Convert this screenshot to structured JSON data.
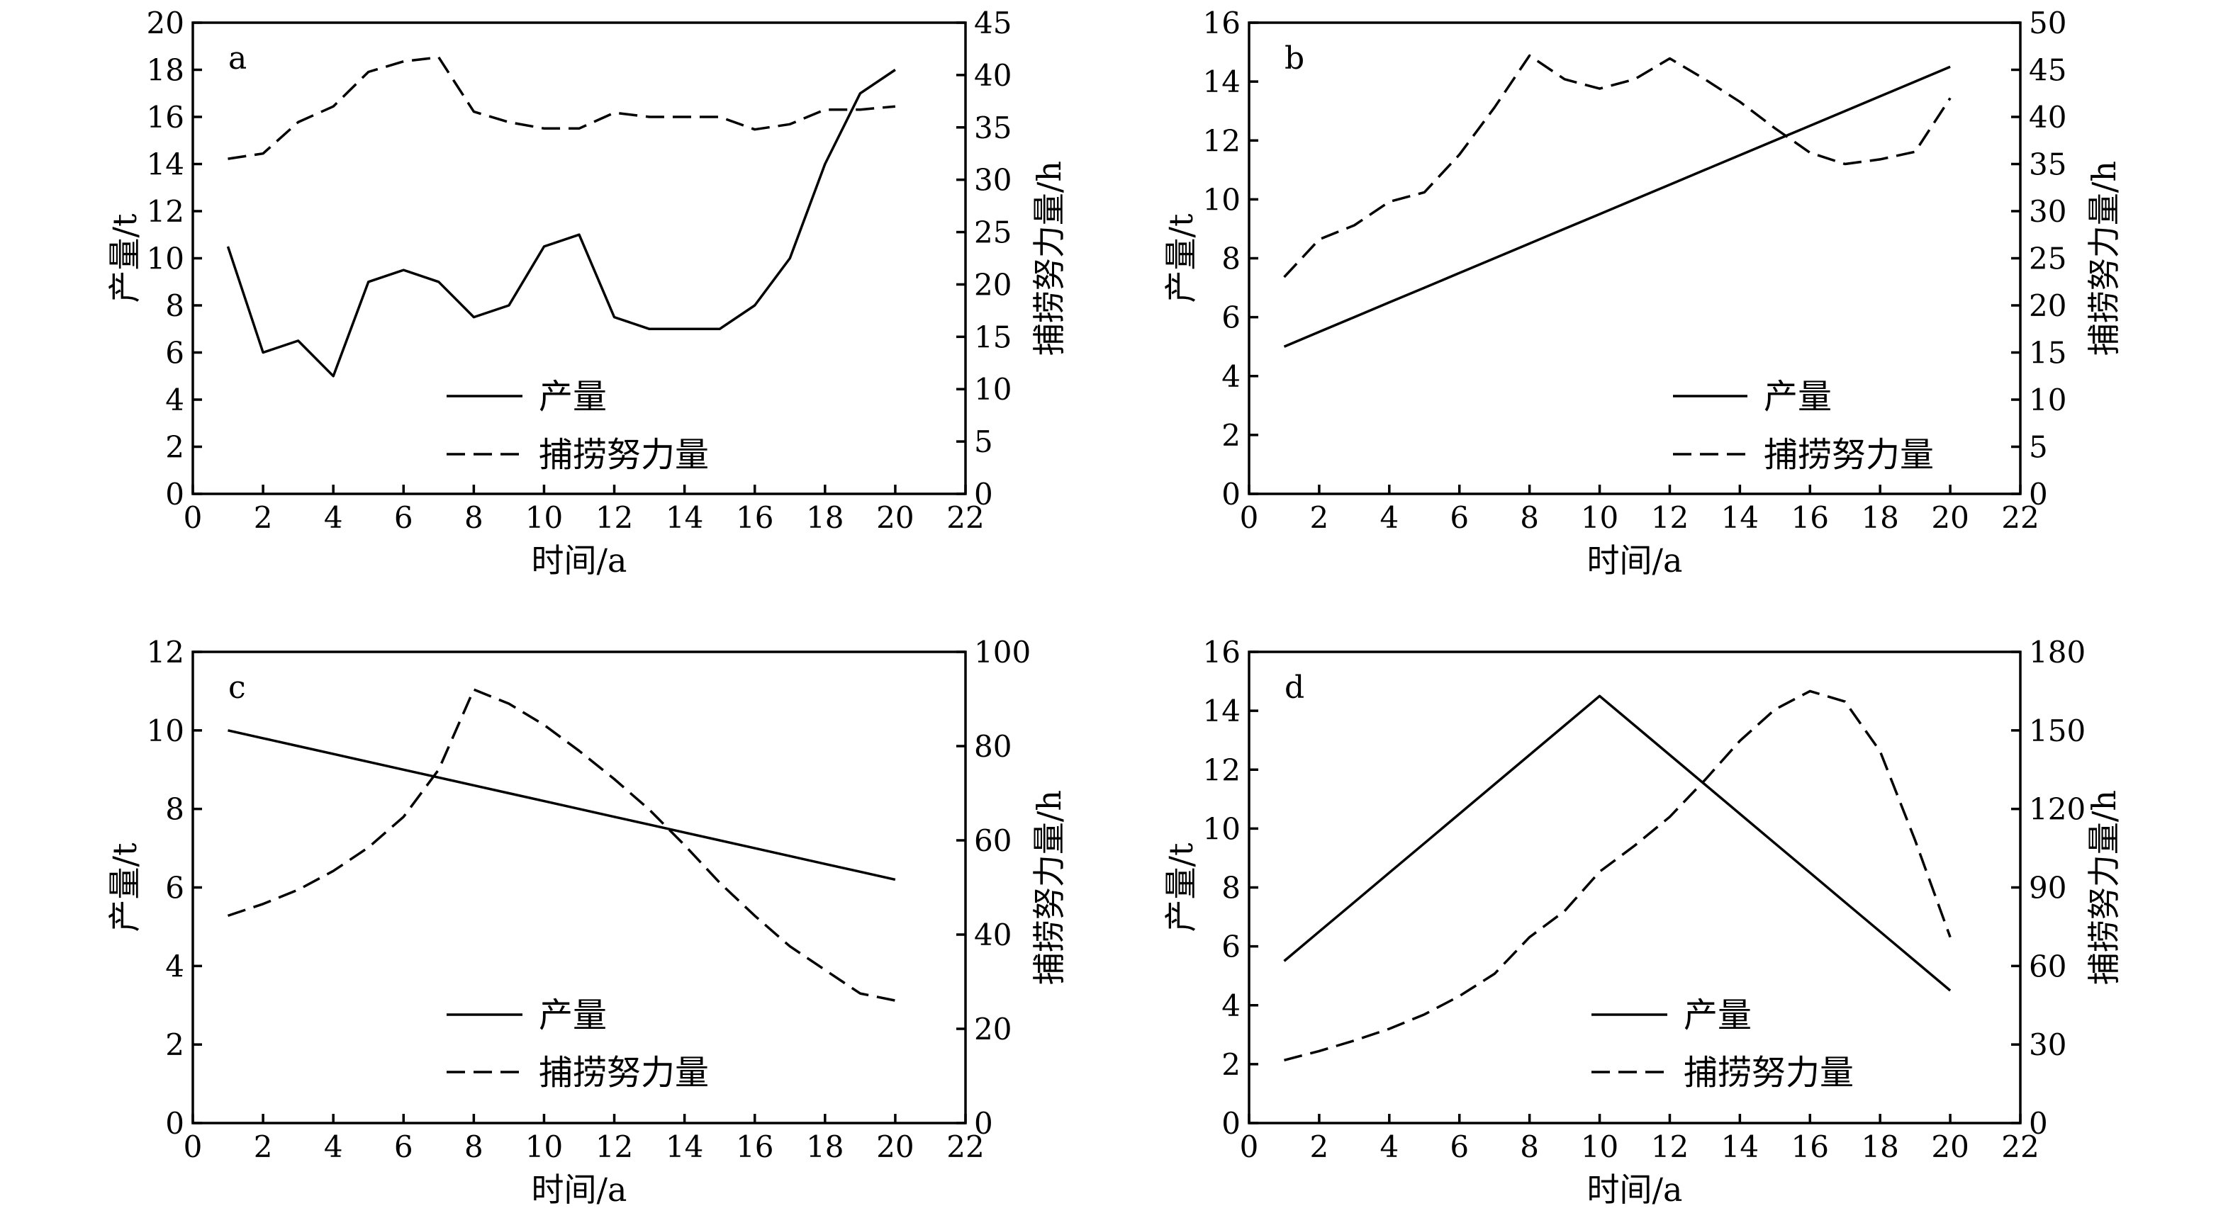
{
  "chart_data": [
    {
      "panel": "a",
      "type": "line",
      "x": [
        1,
        2,
        3,
        4,
        5,
        6,
        7,
        8,
        9,
        10,
        11,
        12,
        13,
        14,
        15,
        16,
        17,
        18,
        19,
        20
      ],
      "series": [
        {
          "name": "产量",
          "axis": "left",
          "dash": "solid",
          "values": [
            10.5,
            6,
            6.5,
            5,
            9,
            9.5,
            9,
            7.5,
            8,
            10.5,
            11,
            7.5,
            7,
            7,
            7,
            8,
            10,
            14,
            17,
            18
          ]
        },
        {
          "name": "捕捞努力量",
          "axis": "right",
          "dash": "dashed",
          "values": [
            32,
            32.5,
            35.5,
            37,
            40.3,
            41.3,
            41.7,
            36.5,
            35.5,
            34.9,
            34.9,
            36.4,
            36,
            36,
            36,
            34.8,
            35.3,
            36.7,
            36.7,
            37
          ]
        }
      ],
      "xlabel": "时间/a",
      "ylabel": "产量/t",
      "y2label": "捕捞努力量/h",
      "xlim": [
        0,
        22
      ],
      "ylim": [
        0,
        20
      ],
      "y2lim": [
        0,
        45
      ],
      "xticks": [
        0,
        2,
        4,
        6,
        8,
        10,
        12,
        14,
        16,
        18,
        20,
        22
      ],
      "yticks": [
        0,
        2,
        4,
        6,
        8,
        10,
        12,
        14,
        16,
        18,
        20
      ],
      "y2ticks": [
        0,
        5,
        10,
        15,
        20,
        25,
        30,
        35,
        40,
        45
      ],
      "legend_placement": "bottom-center",
      "grid": false
    },
    {
      "panel": "b",
      "type": "line",
      "x": [
        1,
        2,
        3,
        4,
        5,
        6,
        7,
        8,
        9,
        10,
        11,
        12,
        13,
        14,
        15,
        16,
        17,
        18,
        19,
        20
      ],
      "series": [
        {
          "name": "产量",
          "axis": "left",
          "dash": "solid",
          "values": [
            5,
            5.5,
            6,
            6.5,
            7,
            7.5,
            8,
            8.5,
            9,
            9.5,
            10,
            10.5,
            11,
            11.5,
            12,
            12.5,
            13,
            13.5,
            14,
            14.5
          ]
        },
        {
          "name": "捕捞努力量",
          "axis": "right",
          "dash": "dashed",
          "values": [
            23,
            27,
            28.5,
            31,
            32,
            36,
            41,
            46.5,
            44,
            43,
            44,
            46.2,
            44,
            41.6,
            38.8,
            36.2,
            35,
            35.5,
            36.3,
            42
          ]
        }
      ],
      "xlabel": "时间/a",
      "ylabel": "产量/t",
      "y2label": "捕捞努力量/h",
      "xlim": [
        0,
        22
      ],
      "ylim": [
        0,
        16
      ],
      "y2lim": [
        0,
        50
      ],
      "xticks": [
        0,
        2,
        4,
        6,
        8,
        10,
        12,
        14,
        16,
        18,
        20,
        22
      ],
      "yticks": [
        0,
        2,
        4,
        6,
        8,
        10,
        12,
        14,
        16
      ],
      "y2ticks": [
        0,
        5,
        10,
        15,
        20,
        25,
        30,
        35,
        40,
        45,
        50
      ],
      "legend_placement": "bottom-right",
      "grid": false
    },
    {
      "panel": "c",
      "type": "line",
      "x": [
        1,
        2,
        3,
        4,
        5,
        6,
        7,
        8,
        9,
        10,
        11,
        12,
        13,
        14,
        15,
        16,
        17,
        18,
        19,
        20
      ],
      "series": [
        {
          "name": "产量",
          "axis": "left",
          "dash": "solid",
          "values": [
            10,
            9.8,
            9.6,
            9.4,
            9.2,
            9,
            8.8,
            8.6,
            8.4,
            8.2,
            8,
            7.8,
            7.6,
            7.4,
            7.2,
            7,
            6.8,
            6.6,
            6.4,
            6.2
          ]
        },
        {
          "name": "捕捞努力量",
          "axis": "right",
          "dash": "dashed",
          "values": [
            44,
            46.5,
            49.5,
            53.5,
            58.5,
            65,
            75,
            92,
            89,
            84.5,
            79,
            73,
            66.5,
            59,
            51,
            44,
            37.5,
            32.5,
            27.5,
            26
          ]
        }
      ],
      "xlabel": "时间/a",
      "ylabel": "产量/t",
      "y2label": "捕捞努力量/h",
      "xlim": [
        0,
        22
      ],
      "ylim": [
        0,
        12
      ],
      "y2lim": [
        0,
        100
      ],
      "xticks": [
        0,
        2,
        4,
        6,
        8,
        10,
        12,
        14,
        16,
        18,
        20,
        22
      ],
      "yticks": [
        0,
        2,
        4,
        6,
        8,
        10,
        12
      ],
      "y2ticks": [
        0,
        20,
        40,
        60,
        80,
        100
      ],
      "legend_placement": "bottom-center",
      "grid": false
    },
    {
      "panel": "d",
      "type": "line",
      "x": [
        1,
        2,
        3,
        4,
        5,
        6,
        7,
        8,
        9,
        10,
        11,
        12,
        13,
        14,
        15,
        16,
        17,
        18,
        19,
        20
      ],
      "series": [
        {
          "name": "产量",
          "axis": "left",
          "dash": "solid",
          "values": [
            5.5,
            6.5,
            7.5,
            8.5,
            9.5,
            10.5,
            11.5,
            12.5,
            13.5,
            14.5,
            13.5,
            12.5,
            11.5,
            10.5,
            9.5,
            8.5,
            7.5,
            6.5,
            5.5,
            4.5
          ]
        },
        {
          "name": "捕捞努力量",
          "axis": "right",
          "dash": "dashed",
          "values": [
            24,
            27.5,
            31.5,
            36,
            41.5,
            48.5,
            57,
            71,
            81,
            96,
            106,
            117,
            131,
            146,
            158,
            165,
            161,
            142,
            108,
            71
          ]
        }
      ],
      "xlabel": "时间/a",
      "ylabel": "产量/t",
      "y2label": "捕捞努力量/h",
      "xlim": [
        0,
        22
      ],
      "ylim": [
        0,
        16
      ],
      "y2lim": [
        0,
        180
      ],
      "xticks": [
        0,
        2,
        4,
        6,
        8,
        10,
        12,
        14,
        16,
        18,
        20,
        22
      ],
      "yticks": [
        0,
        2,
        4,
        6,
        8,
        10,
        12,
        14,
        16
      ],
      "y2ticks": [
        0,
        30,
        60,
        90,
        120,
        150,
        180
      ],
      "legend_placement": "bottom-center",
      "grid": false
    }
  ]
}
